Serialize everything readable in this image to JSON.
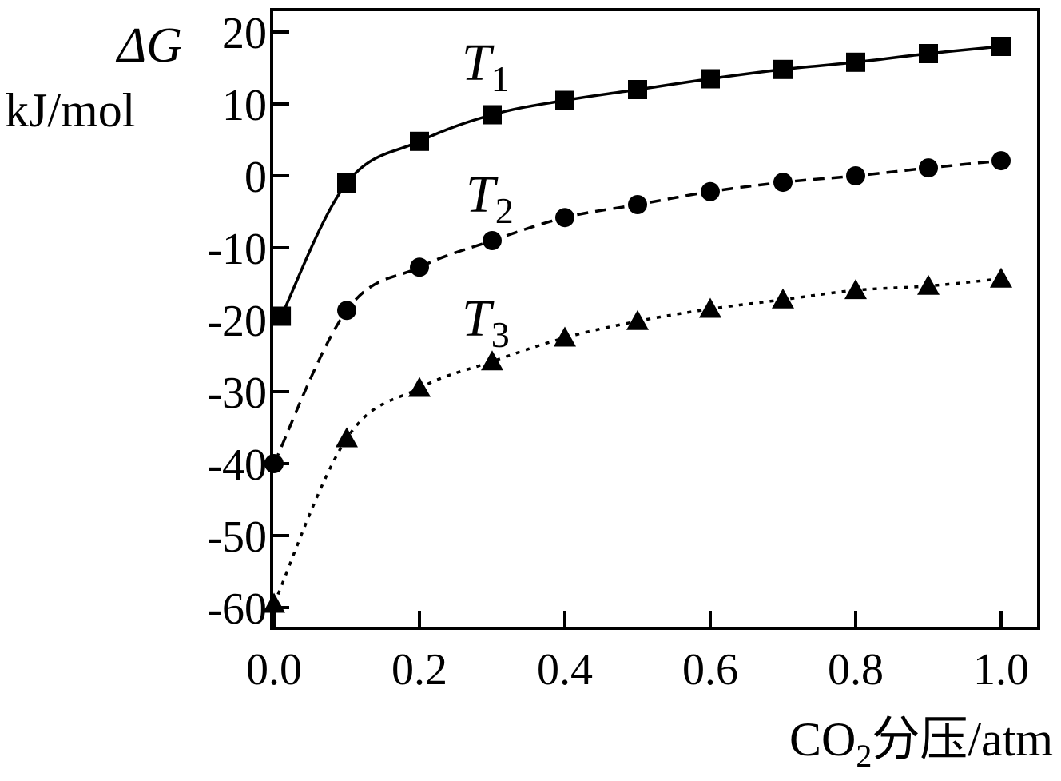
{
  "chart_data": {
    "type": "line",
    "title": "",
    "ylabel_symbol": "ΔG",
    "ylabel_unit": "kJ/mol",
    "xlabel_prefix": "CO",
    "xlabel_sub": "2",
    "xlabel_suffix": "分压/atm",
    "xlim": [
      0.0,
      1.0
    ],
    "ylim": [
      -62,
      20
    ],
    "x_ticks": [
      "0.0",
      "0.2",
      "0.4",
      "0.6",
      "0.8",
      "1.0"
    ],
    "y_ticks": [
      "20",
      "10",
      "0",
      "-10",
      "-20",
      "-30",
      "-40",
      "-50",
      "-60"
    ],
    "grid": false,
    "series": [
      {
        "name_main": "T",
        "name_sub": "1",
        "marker": "square",
        "line_style": "solid",
        "x": [
          0.01,
          0.1,
          0.2,
          0.3,
          0.4,
          0.5,
          0.6,
          0.7,
          0.8,
          0.9,
          1.0
        ],
        "y": [
          -19.5,
          -1.0,
          4.8,
          8.5,
          10.5,
          12.0,
          13.5,
          14.8,
          15.8,
          17.0,
          18.0
        ]
      },
      {
        "name_main": "T",
        "name_sub": "2",
        "marker": "circle",
        "line_style": "dashed",
        "x": [
          0.0,
          0.1,
          0.2,
          0.3,
          0.4,
          0.5,
          0.6,
          0.7,
          0.8,
          0.9,
          1.0
        ],
        "y": [
          -40.0,
          -18.7,
          -12.7,
          -9.0,
          -5.8,
          -4.0,
          -2.2,
          -0.9,
          0.0,
          1.1,
          2.1
        ]
      },
      {
        "name_main": "T",
        "name_sub": "3",
        "marker": "triangle",
        "line_style": "dotted",
        "x": [
          0.0,
          0.1,
          0.2,
          0.3,
          0.4,
          0.5,
          0.6,
          0.7,
          0.8,
          0.9,
          1.0
        ],
        "y": [
          -59.5,
          -36.5,
          -29.5,
          -25.8,
          -22.5,
          -20.2,
          -18.5,
          -17.2,
          -15.9,
          -15.3,
          -14.3
        ]
      }
    ]
  }
}
